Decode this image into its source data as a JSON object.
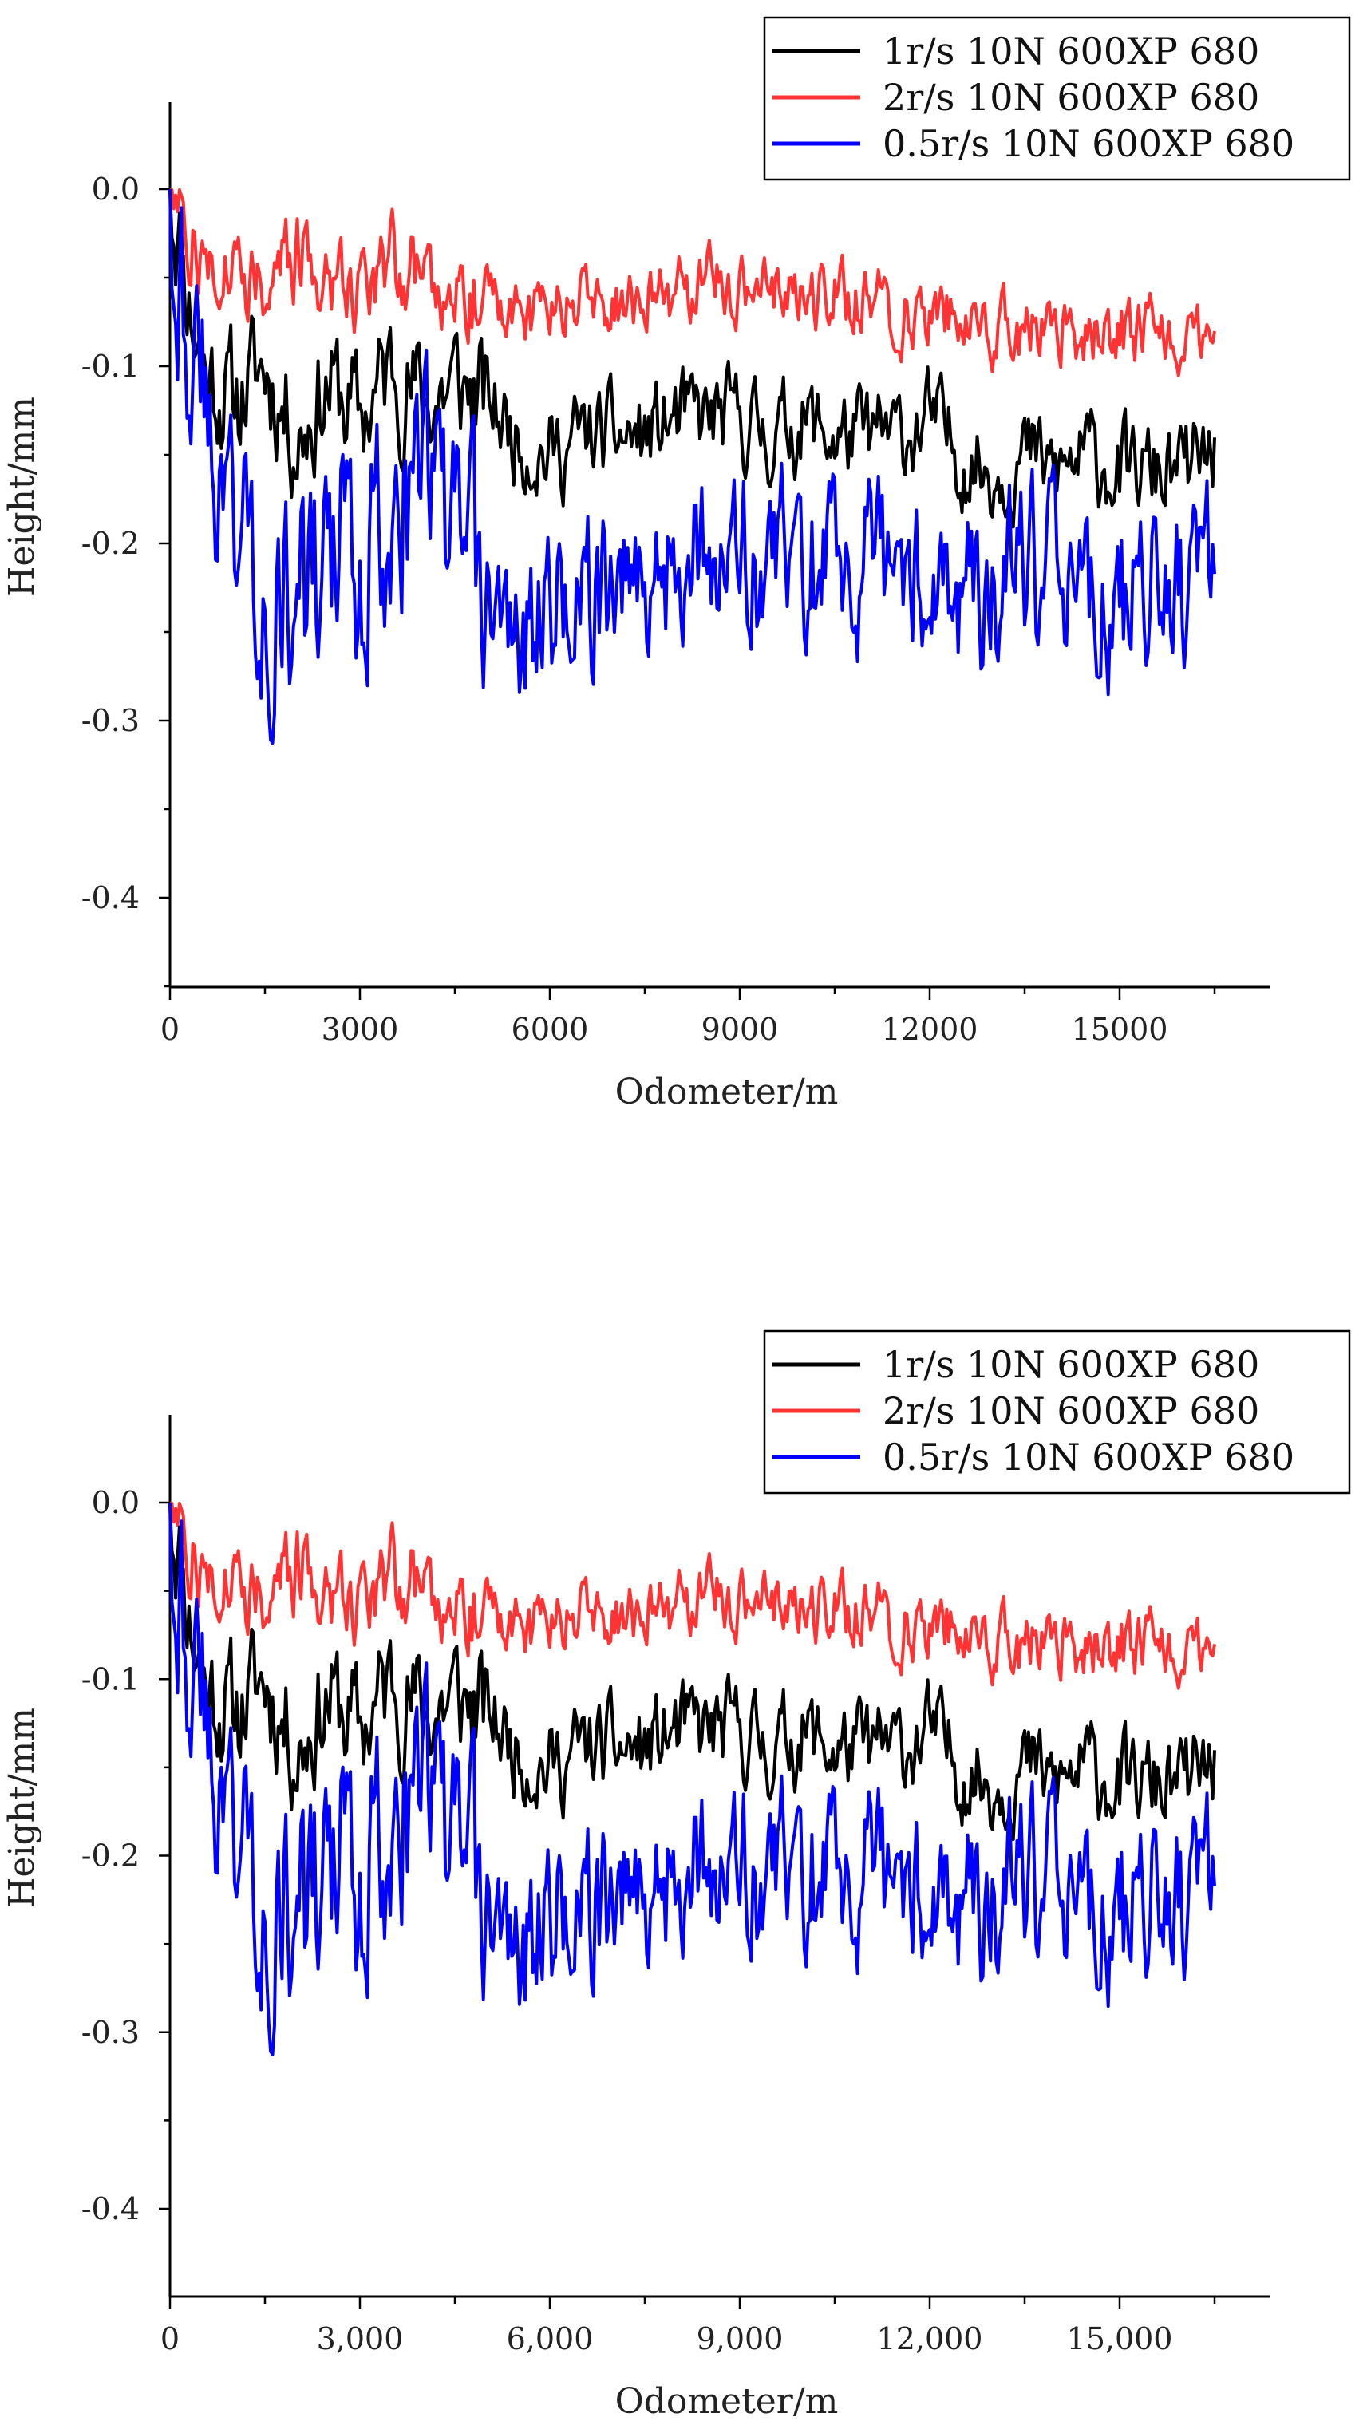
{
  "chart_data": [
    {
      "type": "line",
      "title": "",
      "xlabel": "Odometer/m",
      "ylabel": "Height/mm",
      "xlim": [
        0,
        17500
      ],
      "ylim": [
        -0.45,
        0.05
      ],
      "xticks": [
        0,
        3000,
        6000,
        9000,
        12000,
        15000
      ],
      "xtick_labels": [
        "0",
        "3000",
        "6000",
        "9000",
        "12000",
        "15000"
      ],
      "yticks": [
        0.0,
        -0.1,
        -0.2,
        -0.3,
        -0.4
      ],
      "ytick_labels": [
        "0.0",
        "-0.1",
        "-0.2",
        "-0.3",
        "-0.4"
      ],
      "grid": false,
      "legend_position": "top-right",
      "series": [
        {
          "name": "1r/s 10N 600XP 680",
          "color": "#000000",
          "x": [
            0,
            500,
            1000,
            1500,
            2000,
            2500,
            3000,
            3500,
            4000,
            4500,
            5000,
            5500,
            6000,
            6500,
            7000,
            7500,
            8000,
            8500,
            9000,
            9500,
            10000,
            10500,
            11000,
            11500,
            12000,
            12500,
            13000,
            13500,
            14000,
            14500,
            15000,
            15500,
            16000,
            16500
          ],
          "values": [
            0.0,
            -0.1,
            -0.12,
            -0.1,
            -0.14,
            -0.11,
            -0.13,
            -0.1,
            -0.12,
            -0.11,
            -0.12,
            -0.14,
            -0.15,
            -0.14,
            -0.14,
            -0.14,
            -0.13,
            -0.13,
            -0.13,
            -0.14,
            -0.13,
            -0.14,
            -0.14,
            -0.14,
            -0.13,
            -0.15,
            -0.16,
            -0.15,
            -0.16,
            -0.15,
            -0.16,
            -0.16,
            -0.16,
            -0.15
          ],
          "noise": 0.03,
          "seed": 11
        },
        {
          "name": "2r/s 10N 600XP 680",
          "color": "#ff3333",
          "x": [
            0,
            500,
            1000,
            1500,
            2000,
            2500,
            3000,
            3500,
            4000,
            4500,
            5000,
            5500,
            6000,
            6500,
            7000,
            7500,
            8000,
            8500,
            9000,
            9500,
            10000,
            10500,
            11000,
            11500,
            12000,
            12500,
            13000,
            13500,
            14000,
            14500,
            15000,
            15500,
            16000,
            16500
          ],
          "values": [
            0.0,
            -0.04,
            -0.04,
            -0.05,
            -0.04,
            -0.05,
            -0.05,
            -0.04,
            -0.05,
            -0.05,
            -0.06,
            -0.07,
            -0.07,
            -0.06,
            -0.07,
            -0.06,
            -0.06,
            -0.05,
            -0.06,
            -0.06,
            -0.06,
            -0.06,
            -0.06,
            -0.07,
            -0.07,
            -0.07,
            -0.08,
            -0.08,
            -0.08,
            -0.08,
            -0.08,
            -0.08,
            -0.08,
            -0.08
          ],
          "noise": 0.022,
          "seed": 27
        },
        {
          "name": "0.5r/s 10N 600XP 680",
          "color": "#0000ff",
          "x": [
            0,
            500,
            1000,
            1500,
            2000,
            2500,
            3000,
            3500,
            4000,
            4500,
            5000,
            5500,
            6000,
            6500,
            7000,
            7500,
            8000,
            8500,
            9000,
            9500,
            10000,
            10500,
            11000,
            11500,
            12000,
            12500,
            13000,
            13500,
            14000,
            14500,
            15000,
            15500,
            16000,
            16500
          ],
          "values": [
            0.0,
            -0.12,
            -0.18,
            -0.22,
            -0.24,
            -0.22,
            -0.2,
            -0.18,
            -0.16,
            -0.2,
            -0.24,
            -0.25,
            -0.24,
            -0.23,
            -0.23,
            -0.21,
            -0.21,
            -0.2,
            -0.21,
            -0.21,
            -0.21,
            -0.21,
            -0.22,
            -0.22,
            -0.21,
            -0.23,
            -0.23,
            -0.22,
            -0.23,
            -0.23,
            -0.24,
            -0.23,
            -0.22,
            -0.2
          ],
          "noise": 0.055,
          "seed": 43
        }
      ]
    },
    {
      "type": "line",
      "title": "",
      "xlabel": "Odometer/m",
      "ylabel": "Height/mm",
      "xlim": [
        0,
        17500
      ],
      "ylim": [
        -0.45,
        0.05
      ],
      "xticks": [
        0,
        3000,
        6000,
        9000,
        12000,
        15000
      ],
      "xtick_labels": [
        "0",
        "3,000",
        "6,000",
        "9,000",
        "12,000",
        "15,000"
      ],
      "yticks": [
        0.0,
        -0.1,
        -0.2,
        -0.3,
        -0.4
      ],
      "ytick_labels": [
        "0.0",
        "-0.1",
        "-0.2",
        "-0.3",
        "-0.4"
      ],
      "grid": false,
      "legend_position": "top-right",
      "series": [
        {
          "name": "1r/s 10N 600XP 680",
          "color": "#000000",
          "x": [
            0,
            500,
            1000,
            1500,
            2000,
            2500,
            3000,
            3500,
            4000,
            4500,
            5000,
            5500,
            6000,
            6500,
            7000,
            7500,
            8000,
            8500,
            9000,
            9500,
            10000,
            10500,
            11000,
            11500,
            12000,
            12500,
            13000,
            13500,
            14000,
            14500,
            15000,
            15500,
            16000,
            16500
          ],
          "values": [
            0.0,
            -0.1,
            -0.12,
            -0.1,
            -0.14,
            -0.11,
            -0.13,
            -0.1,
            -0.12,
            -0.11,
            -0.12,
            -0.14,
            -0.15,
            -0.14,
            -0.14,
            -0.14,
            -0.13,
            -0.13,
            -0.13,
            -0.14,
            -0.13,
            -0.14,
            -0.14,
            -0.14,
            -0.13,
            -0.15,
            -0.16,
            -0.15,
            -0.16,
            -0.15,
            -0.16,
            -0.16,
            -0.16,
            -0.15
          ],
          "noise": 0.03,
          "seed": 11
        },
        {
          "name": "2r/s 10N 600XP 680",
          "color": "#ff3333",
          "x": [
            0,
            500,
            1000,
            1500,
            2000,
            2500,
            3000,
            3500,
            4000,
            4500,
            5000,
            5500,
            6000,
            6500,
            7000,
            7500,
            8000,
            8500,
            9000,
            9500,
            10000,
            10500,
            11000,
            11500,
            12000,
            12500,
            13000,
            13500,
            14000,
            14500,
            15000,
            15500,
            16000,
            16500
          ],
          "values": [
            0.0,
            -0.04,
            -0.04,
            -0.05,
            -0.04,
            -0.05,
            -0.05,
            -0.04,
            -0.05,
            -0.05,
            -0.06,
            -0.07,
            -0.07,
            -0.06,
            -0.07,
            -0.06,
            -0.06,
            -0.05,
            -0.06,
            -0.06,
            -0.06,
            -0.06,
            -0.06,
            -0.07,
            -0.07,
            -0.07,
            -0.08,
            -0.08,
            -0.08,
            -0.08,
            -0.08,
            -0.08,
            -0.08,
            -0.08
          ],
          "noise": 0.022,
          "seed": 27
        },
        {
          "name": "0.5r/s 10N 600XP 680",
          "color": "#0000ff",
          "x": [
            0,
            500,
            1000,
            1500,
            2000,
            2500,
            3000,
            3500,
            4000,
            4500,
            5000,
            5500,
            6000,
            6500,
            7000,
            7500,
            8000,
            8500,
            9000,
            9500,
            10000,
            10500,
            11000,
            11500,
            12000,
            12500,
            13000,
            13500,
            14000,
            14500,
            15000,
            15500,
            16000,
            16500
          ],
          "values": [
            0.0,
            -0.12,
            -0.18,
            -0.22,
            -0.24,
            -0.22,
            -0.2,
            -0.18,
            -0.16,
            -0.2,
            -0.24,
            -0.25,
            -0.24,
            -0.23,
            -0.23,
            -0.21,
            -0.21,
            -0.2,
            -0.21,
            -0.21,
            -0.21,
            -0.21,
            -0.22,
            -0.22,
            -0.21,
            -0.23,
            -0.23,
            -0.22,
            -0.23,
            -0.23,
            -0.24,
            -0.23,
            -0.22,
            -0.2
          ],
          "noise": 0.055,
          "seed": 43
        }
      ]
    }
  ]
}
